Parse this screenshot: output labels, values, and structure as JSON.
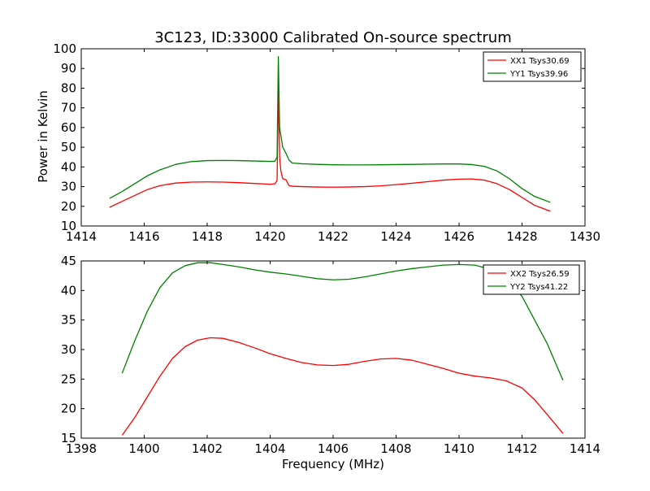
{
  "figure": {
    "title": "3C123, ID:33000 Calibrated On-source spectrum",
    "ylabel": "Power in Kelvin",
    "xlabel": "Frequency (MHz)"
  },
  "chart_data": [
    {
      "type": "line",
      "title": "3C123, ID:33000 Calibrated On-source spectrum",
      "xlabel": "",
      "ylabel": "Power in Kelvin",
      "xlim": [
        1414,
        1430
      ],
      "ylim": [
        10,
        100
      ],
      "xticks": [
        1414,
        1416,
        1418,
        1420,
        1422,
        1424,
        1426,
        1428,
        1430
      ],
      "yticks": [
        10,
        20,
        30,
        40,
        50,
        60,
        70,
        80,
        90,
        100
      ],
      "grid": false,
      "legend": "top-right",
      "series": [
        {
          "name": "XX1 Tsys30.69",
          "color": "#ff0000",
          "x": [
            1414.9,
            1415.3,
            1415.7,
            1416.1,
            1416.5,
            1417.0,
            1417.5,
            1418.0,
            1418.5,
            1419.0,
            1419.5,
            1420.0,
            1420.15,
            1420.22,
            1420.26,
            1420.3,
            1420.34,
            1420.4,
            1420.5,
            1420.6,
            1420.7,
            1421.0,
            1421.5,
            1422.0,
            1422.5,
            1423.0,
            1423.5,
            1424.0,
            1424.5,
            1425.0,
            1425.5,
            1426.0,
            1426.4,
            1426.8,
            1427.2,
            1427.6,
            1428.0,
            1428.4,
            1428.9
          ],
          "values": [
            19.5,
            22.5,
            25.5,
            28.5,
            30.5,
            31.8,
            32.3,
            32.4,
            32.3,
            32.0,
            31.6,
            31.2,
            31.4,
            33.0,
            80.0,
            45.0,
            38.0,
            34.0,
            33.5,
            30.5,
            30.2,
            30.0,
            29.8,
            29.7,
            29.8,
            30.0,
            30.4,
            31.0,
            31.7,
            32.5,
            33.3,
            33.8,
            33.9,
            33.3,
            31.5,
            28.5,
            24.5,
            20.5,
            17.5
          ]
        },
        {
          "name": "YY1 Tsys39.96",
          "color": "#008000",
          "x": [
            1414.9,
            1415.3,
            1415.7,
            1416.1,
            1416.5,
            1417.0,
            1417.5,
            1418.0,
            1418.5,
            1419.0,
            1419.5,
            1420.0,
            1420.15,
            1420.22,
            1420.26,
            1420.3,
            1420.34,
            1420.4,
            1420.5,
            1420.6,
            1420.7,
            1421.0,
            1421.5,
            1422.0,
            1422.5,
            1423.0,
            1423.5,
            1424.0,
            1424.5,
            1425.0,
            1425.5,
            1426.0,
            1426.4,
            1426.8,
            1427.2,
            1427.6,
            1428.0,
            1428.4,
            1428.9
          ],
          "values": [
            24.0,
            27.5,
            31.5,
            35.5,
            38.5,
            41.3,
            42.7,
            43.2,
            43.3,
            43.2,
            43.0,
            42.8,
            42.9,
            45.0,
            96.0,
            60.0,
            56.0,
            50.0,
            47.0,
            43.5,
            42.0,
            41.6,
            41.3,
            41.1,
            41.0,
            41.0,
            41.1,
            41.2,
            41.3,
            41.4,
            41.5,
            41.5,
            41.2,
            40.3,
            38.0,
            34.0,
            29.0,
            25.0,
            22.0
          ]
        }
      ]
    },
    {
      "type": "line",
      "title": "",
      "xlabel": "Frequency (MHz)",
      "ylabel": "",
      "xlim": [
        1398,
        1414
      ],
      "ylim": [
        15,
        45
      ],
      "xticks": [
        1398,
        1400,
        1402,
        1404,
        1406,
        1408,
        1410,
        1412,
        1414
      ],
      "yticks": [
        15,
        20,
        25,
        30,
        35,
        40,
        45
      ],
      "grid": false,
      "legend": "top-right",
      "series": [
        {
          "name": "XX2 Tsys26.59",
          "color": "#ff0000",
          "x": [
            1399.3,
            1399.7,
            1400.1,
            1400.5,
            1400.9,
            1401.3,
            1401.7,
            1402.1,
            1402.5,
            1403.0,
            1403.5,
            1404.0,
            1404.5,
            1405.0,
            1405.5,
            1406.0,
            1406.5,
            1407.0,
            1407.5,
            1408.0,
            1408.5,
            1409.0,
            1409.5,
            1410.0,
            1410.5,
            1411.0,
            1411.5,
            1412.0,
            1412.4,
            1412.8,
            1413.3
          ],
          "values": [
            15.5,
            18.5,
            22.0,
            25.5,
            28.5,
            30.5,
            31.6,
            32.0,
            31.9,
            31.2,
            30.3,
            29.3,
            28.5,
            27.8,
            27.4,
            27.3,
            27.5,
            28.0,
            28.4,
            28.5,
            28.2,
            27.5,
            26.8,
            26.0,
            25.5,
            25.2,
            24.7,
            23.5,
            21.5,
            19.0,
            15.8
          ]
        },
        {
          "name": "YY2 Tsys41.22",
          "color": "#008000",
          "x": [
            1399.3,
            1399.7,
            1400.1,
            1400.5,
            1400.9,
            1401.3,
            1401.7,
            1402.1,
            1402.5,
            1403.0,
            1403.5,
            1404.0,
            1404.5,
            1405.0,
            1405.5,
            1406.0,
            1406.5,
            1407.0,
            1407.5,
            1408.0,
            1408.5,
            1409.0,
            1409.5,
            1410.0,
            1410.5,
            1411.0,
            1411.5,
            1412.0,
            1412.4,
            1412.8,
            1413.3
          ],
          "values": [
            26.0,
            31.5,
            36.5,
            40.5,
            43.0,
            44.2,
            44.7,
            44.7,
            44.4,
            44.0,
            43.5,
            43.1,
            42.8,
            42.4,
            42.0,
            41.8,
            41.9,
            42.3,
            42.8,
            43.3,
            43.7,
            44.0,
            44.3,
            44.4,
            44.3,
            43.6,
            42.0,
            39.0,
            35.0,
            31.0,
            24.8
          ]
        }
      ]
    }
  ]
}
